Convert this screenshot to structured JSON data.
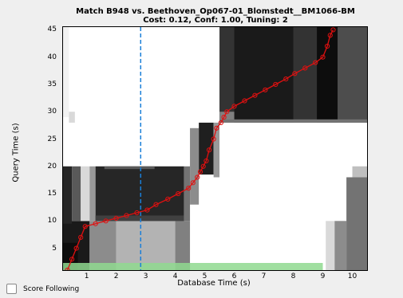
{
  "window": {
    "title_line1": "Match B948 vs. Beethoven_Op067-01_Blomstedt__BM1066-BM",
    "title_line2": "Cost: 0.12, Conf: 1.00, Tuning: 2"
  },
  "axes": {
    "xlabel": "Database Time (s)",
    "ylabel": "Query Time (s)",
    "xticks": [
      "1",
      "2",
      "3",
      "4",
      "5",
      "6",
      "7",
      "8",
      "9",
      "10"
    ],
    "yticks": [
      "5",
      "10",
      "15",
      "20",
      "25",
      "30",
      "35",
      "40",
      "45"
    ]
  },
  "score_following": {
    "label": "Score Following",
    "checked": false
  },
  "chart_data": {
    "type": "heatmap",
    "xlim": [
      0.2,
      10.5
    ],
    "ylim": [
      1,
      45.5
    ],
    "grid": false,
    "cursor_x": 2.83,
    "progress_range": [
      0.2,
      9.0
    ],
    "path_points": [
      [
        0.35,
        1
      ],
      [
        0.5,
        3
      ],
      [
        0.65,
        5
      ],
      [
        0.8,
        7
      ],
      [
        0.95,
        9
      ],
      [
        1.3,
        9.5
      ],
      [
        1.65,
        10
      ],
      [
        2.0,
        10.5
      ],
      [
        2.35,
        11
      ],
      [
        2.7,
        11.5
      ],
      [
        3.05,
        12
      ],
      [
        3.35,
        13
      ],
      [
        3.75,
        14
      ],
      [
        4.1,
        15
      ],
      [
        4.45,
        16
      ],
      [
        4.6,
        17
      ],
      [
        4.75,
        18
      ],
      [
        4.85,
        19
      ],
      [
        4.95,
        20
      ],
      [
        5.05,
        21
      ],
      [
        5.15,
        23
      ],
      [
        5.3,
        25
      ],
      [
        5.4,
        27
      ],
      [
        5.55,
        28
      ],
      [
        5.65,
        29
      ],
      [
        5.75,
        30
      ],
      [
        6.0,
        31
      ],
      [
        6.35,
        32
      ],
      [
        6.7,
        33
      ],
      [
        7.05,
        34
      ],
      [
        7.4,
        35
      ],
      [
        7.75,
        36
      ],
      [
        8.05,
        37
      ],
      [
        8.4,
        38
      ],
      [
        8.75,
        39
      ],
      [
        9.0,
        40
      ],
      [
        9.15,
        42
      ],
      [
        9.25,
        44
      ],
      [
        9.35,
        45
      ]
    ],
    "blocks": [
      {
        "x": [
          0.2,
          1.1
        ],
        "y": [
          1,
          10
        ],
        "shade": 0.1
      },
      {
        "x": [
          0.2,
          0.7
        ],
        "y": [
          1,
          6
        ],
        "shade": 0.05
      },
      {
        "x": [
          0.2,
          0.5
        ],
        "y": [
          9.5,
          20
        ],
        "shade": 0.15
      },
      {
        "x": [
          0.5,
          0.8
        ],
        "y": [
          10,
          20
        ],
        "shade": 0.35
      },
      {
        "x": [
          0.8,
          1.1
        ],
        "y": [
          10,
          20
        ],
        "shade": 0.85
      },
      {
        "x": [
          1.1,
          2.0
        ],
        "y": [
          1,
          10
        ],
        "shade": 0.55
      },
      {
        "x": [
          2.0,
          4.0
        ],
        "y": [
          1,
          10
        ],
        "shade": 0.7
      },
      {
        "x": [
          4.0,
          4.5
        ],
        "y": [
          1,
          10
        ],
        "shade": 0.5
      },
      {
        "x": [
          1.1,
          1.3
        ],
        "y": [
          10,
          20
        ],
        "shade": 0.6
      },
      {
        "x": [
          1.3,
          4.3
        ],
        "y": [
          10,
          20
        ],
        "shade": 0.15
      },
      {
        "x": [
          1.3,
          4.3
        ],
        "y": [
          10,
          11
        ],
        "shade": 0.25
      },
      {
        "x": [
          1.6,
          3.3
        ],
        "y": [
          19.5,
          20
        ],
        "shade": 0.35
      },
      {
        "x": [
          4.3,
          4.5
        ],
        "y": [
          10,
          20
        ],
        "shade": 0.45
      },
      {
        "x": [
          4.5,
          4.8
        ],
        "y": [
          13,
          27
        ],
        "shade": 0.55
      },
      {
        "x": [
          4.8,
          5.3
        ],
        "y": [
          18.5,
          28
        ],
        "shade": 0.12
      },
      {
        "x": [
          5.3,
          5.5
        ],
        "y": [
          18,
          28
        ],
        "shade": 0.6
      },
      {
        "x": [
          5.5,
          10.5
        ],
        "y": [
          28,
          45.5
        ],
        "shade": 0.2
      },
      {
        "x": [
          6.0,
          8.0
        ],
        "y": [
          28,
          45.5
        ],
        "shade": 0.1
      },
      {
        "x": [
          8.8,
          9.5
        ],
        "y": [
          28,
          45.5
        ],
        "shade": 0.05
      },
      {
        "x": [
          9.5,
          10.5
        ],
        "y": [
          28,
          45.5
        ],
        "shade": 0.3
      },
      {
        "x": [
          5.5,
          6.0
        ],
        "y": [
          28,
          30
        ],
        "shade": 0.5
      },
      {
        "x": [
          5.5,
          10.5
        ],
        "y": [
          28,
          28.6
        ],
        "shade": 0.45
      },
      {
        "x": [
          0.2,
          0.4
        ],
        "y": [
          29,
          45.5
        ],
        "shade": 0.95
      },
      {
        "x": [
          0.4,
          0.6
        ],
        "y": [
          28,
          30
        ],
        "shade": 0.85
      },
      {
        "x": [
          9.1,
          9.4
        ],
        "y": [
          1,
          10
        ],
        "shade": 0.85
      },
      {
        "x": [
          9.4,
          9.8
        ],
        "y": [
          1,
          10
        ],
        "shade": 0.55
      },
      {
        "x": [
          9.8,
          10.5
        ],
        "y": [
          1,
          18
        ],
        "shade": 0.45
      },
      {
        "x": [
          10.0,
          10.5
        ],
        "y": [
          18,
          20
        ],
        "shade": 0.75
      }
    ]
  }
}
